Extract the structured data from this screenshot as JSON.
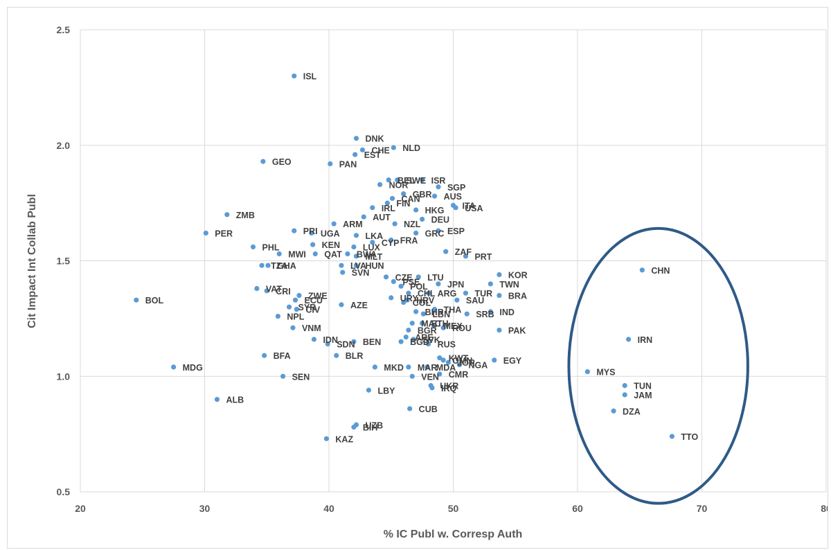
{
  "chart_data": {
    "type": "scatter",
    "title": "",
    "xlabel": "% IC Publ w. Corresp Auth",
    "ylabel": "Cit Impact Int Collab Publ",
    "xlim": [
      20,
      80
    ],
    "ylim": [
      0.5,
      2.5
    ],
    "xticks": [
      "20",
      "30",
      "40",
      "50",
      "60",
      "70",
      "80"
    ],
    "yticks": [
      "0.5",
      "1.0",
      "1.5",
      "2.0",
      "2.5"
    ],
    "grid": true,
    "marker_color": "#5b9bd5",
    "highlight_ellipse_color": "#2e5a87",
    "points": [
      {
        "label": "ISL",
        "x": 37.2,
        "y": 2.3
      },
      {
        "label": "DNK",
        "x": 42.2,
        "y": 2.03
      },
      {
        "label": "NLD",
        "x": 45.2,
        "y": 1.99
      },
      {
        "label": "CHE",
        "x": 42.7,
        "y": 1.98
      },
      {
        "label": "EST",
        "x": 42.1,
        "y": 1.96
      },
      {
        "label": "GEO",
        "x": 34.7,
        "y": 1.93
      },
      {
        "label": "PAN",
        "x": 40.1,
        "y": 1.92
      },
      {
        "label": "BEL",
        "x": 44.8,
        "y": 1.85
      },
      {
        "label": "SWE",
        "x": 45.5,
        "y": 1.85
      },
      {
        "label": "ISR",
        "x": 47.5,
        "y": 1.85
      },
      {
        "label": "NOR",
        "x": 44.1,
        "y": 1.83
      },
      {
        "label": "SGP",
        "x": 48.8,
        "y": 1.82
      },
      {
        "label": "GBR",
        "x": 46.0,
        "y": 1.79
      },
      {
        "label": "AUS",
        "x": 48.5,
        "y": 1.78
      },
      {
        "label": "CAN",
        "x": 45.1,
        "y": 1.77
      },
      {
        "label": "ITA",
        "x": 50.0,
        "y": 1.74
      },
      {
        "label": "IRL",
        "x": 43.5,
        "y": 1.73
      },
      {
        "label": "FIN",
        "x": 44.7,
        "y": 1.75
      },
      {
        "label": "HKG",
        "x": 47.0,
        "y": 1.72
      },
      {
        "label": "AUT",
        "x": 42.8,
        "y": 1.69
      },
      {
        "label": "DEU",
        "x": 47.5,
        "y": 1.68
      },
      {
        "label": "USA",
        "x": 50.2,
        "y": 1.73
      },
      {
        "label": "NZL",
        "x": 45.3,
        "y": 1.66
      },
      {
        "label": "ZMB",
        "x": 31.8,
        "y": 1.7
      },
      {
        "label": "ARM",
        "x": 40.4,
        "y": 1.66
      },
      {
        "label": "ESP",
        "x": 48.8,
        "y": 1.63
      },
      {
        "label": "PRI",
        "x": 37.2,
        "y": 1.63
      },
      {
        "label": "UGA",
        "x": 38.6,
        "y": 1.62
      },
      {
        "label": "PER",
        "x": 30.1,
        "y": 1.62
      },
      {
        "label": "LKA",
        "x": 42.2,
        "y": 1.61
      },
      {
        "label": "FRA",
        "x": 45.0,
        "y": 1.59
      },
      {
        "label": "GRC",
        "x": 47.0,
        "y": 1.62
      },
      {
        "label": "CYP",
        "x": 43.5,
        "y": 1.58
      },
      {
        "label": "LUX",
        "x": 42.0,
        "y": 1.56
      },
      {
        "label": "PHL",
        "x": 33.9,
        "y": 1.56
      },
      {
        "label": "KEN",
        "x": 38.7,
        "y": 1.57
      },
      {
        "label": "MWI",
        "x": 36.0,
        "y": 1.53
      },
      {
        "label": "QAT",
        "x": 38.9,
        "y": 1.53
      },
      {
        "label": "BWA",
        "x": 41.5,
        "y": 1.53
      },
      {
        "label": "MLT",
        "x": 42.2,
        "y": 1.52
      },
      {
        "label": "ZAF",
        "x": 49.4,
        "y": 1.54
      },
      {
        "label": "PRT",
        "x": 51.0,
        "y": 1.52
      },
      {
        "label": "TZA",
        "x": 34.6,
        "y": 1.48
      },
      {
        "label": "GHA",
        "x": 35.1,
        "y": 1.48
      },
      {
        "label": "LVA",
        "x": 41.0,
        "y": 1.48
      },
      {
        "label": "HUN",
        "x": 42.2,
        "y": 1.48
      },
      {
        "label": "SVN",
        "x": 41.1,
        "y": 1.45
      },
      {
        "label": "KOR",
        "x": 53.7,
        "y": 1.44
      },
      {
        "label": "TWN",
        "x": 53.0,
        "y": 1.4
      },
      {
        "label": "CZE",
        "x": 44.6,
        "y": 1.43
      },
      {
        "label": "LTU",
        "x": 47.2,
        "y": 1.43
      },
      {
        "label": "PSE",
        "x": 45.2,
        "y": 1.41
      },
      {
        "label": "POL",
        "x": 45.8,
        "y": 1.39
      },
      {
        "label": "JPN",
        "x": 48.8,
        "y": 1.4
      },
      {
        "label": "VAT",
        "x": 34.2,
        "y": 1.38
      },
      {
        "label": "CRI",
        "x": 35.0,
        "y": 1.37
      },
      {
        "label": "ZWE",
        "x": 37.6,
        "y": 1.35
      },
      {
        "label": "CHL",
        "x": 46.4,
        "y": 1.36
      },
      {
        "label": "ARG",
        "x": 48.0,
        "y": 1.36
      },
      {
        "label": "TUR",
        "x": 51.0,
        "y": 1.36
      },
      {
        "label": "BRA",
        "x": 53.7,
        "y": 1.35
      },
      {
        "label": "ECU",
        "x": 37.3,
        "y": 1.33
      },
      {
        "label": "URY",
        "x": 45.0,
        "y": 1.34
      },
      {
        "label": "HRV",
        "x": 46.3,
        "y": 1.33
      },
      {
        "label": "SAU",
        "x": 50.3,
        "y": 1.33
      },
      {
        "label": "BOL",
        "x": 24.5,
        "y": 1.33
      },
      {
        "label": "COL",
        "x": 46.0,
        "y": 1.32
      },
      {
        "label": "AZE",
        "x": 41.0,
        "y": 1.31
      },
      {
        "label": "THA",
        "x": 48.5,
        "y": 1.29
      },
      {
        "label": "SYR",
        "x": 36.8,
        "y": 1.3
      },
      {
        "label": "CIV",
        "x": 37.4,
        "y": 1.29
      },
      {
        "label": "BHR",
        "x": 47.0,
        "y": 1.28
      },
      {
        "label": "LBN",
        "x": 47.6,
        "y": 1.27
      },
      {
        "label": "SRB",
        "x": 51.1,
        "y": 1.27
      },
      {
        "label": "IND",
        "x": 53.0,
        "y": 1.28
      },
      {
        "label": "NPL",
        "x": 35.9,
        "y": 1.26
      },
      {
        "label": "MAC",
        "x": 46.7,
        "y": 1.23
      },
      {
        "label": "ETH",
        "x": 47.5,
        "y": 1.23
      },
      {
        "label": "MEX",
        "x": 48.5,
        "y": 1.22
      },
      {
        "label": "VNM",
        "x": 37.1,
        "y": 1.21
      },
      {
        "label": "ROU",
        "x": 49.2,
        "y": 1.21
      },
      {
        "label": "PAK",
        "x": 53.7,
        "y": 1.2
      },
      {
        "label": "BGR",
        "x": 46.4,
        "y": 1.2
      },
      {
        "label": "ARE",
        "x": 46.2,
        "y": 1.17
      },
      {
        "label": "IDN",
        "x": 38.8,
        "y": 1.16
      },
      {
        "label": "SVK",
        "x": 46.8,
        "y": 1.16
      },
      {
        "label": "SDN",
        "x": 39.9,
        "y": 1.14
      },
      {
        "label": "BEN",
        "x": 42.0,
        "y": 1.15
      },
      {
        "label": "BGD",
        "x": 45.8,
        "y": 1.15
      },
      {
        "label": "RUS",
        "x": 48.0,
        "y": 1.14
      },
      {
        "label": "BFA",
        "x": 34.8,
        "y": 1.09
      },
      {
        "label": "BLR",
        "x": 40.6,
        "y": 1.09
      },
      {
        "label": "KWT",
        "x": 48.9,
        "y": 1.08
      },
      {
        "label": "OMN",
        "x": 49.2,
        "y": 1.07
      },
      {
        "label": "JOR",
        "x": 49.6,
        "y": 1.06
      },
      {
        "label": "EGY",
        "x": 53.3,
        "y": 1.07
      },
      {
        "label": "MKD",
        "x": 43.7,
        "y": 1.04
      },
      {
        "label": "MDA",
        "x": 47.9,
        "y": 1.04
      },
      {
        "label": "NGA",
        "x": 50.5,
        "y": 1.05
      },
      {
        "label": "MDG",
        "x": 27.5,
        "y": 1.04
      },
      {
        "label": "MAR",
        "x": 46.4,
        "y": 1.04
      },
      {
        "label": "CMR",
        "x": 48.9,
        "y": 1.01
      },
      {
        "label": "SEN",
        "x": 36.3,
        "y": 1.0
      },
      {
        "label": "VEN",
        "x": 46.7,
        "y": 1.0
      },
      {
        "label": "UKR",
        "x": 48.2,
        "y": 0.96
      },
      {
        "label": "IRQ",
        "x": 48.3,
        "y": 0.95
      },
      {
        "label": "LBY",
        "x": 43.2,
        "y": 0.94
      },
      {
        "label": "ALB",
        "x": 31.0,
        "y": 0.9
      },
      {
        "label": "CUB",
        "x": 46.5,
        "y": 0.86
      },
      {
        "label": "UZB",
        "x": 42.2,
        "y": 0.79
      },
      {
        "label": "BIH",
        "x": 42.0,
        "y": 0.78
      },
      {
        "label": "KAZ",
        "x": 39.8,
        "y": 0.73
      },
      {
        "label": "CHN",
        "x": 65.2,
        "y": 1.46
      },
      {
        "label": "IRN",
        "x": 64.1,
        "y": 1.16
      },
      {
        "label": "MYS",
        "x": 60.8,
        "y": 1.02
      },
      {
        "label": "TUN",
        "x": 63.8,
        "y": 0.96
      },
      {
        "label": "JAM",
        "x": 63.8,
        "y": 0.92
      },
      {
        "label": "DZA",
        "x": 62.9,
        "y": 0.85
      },
      {
        "label": "TTO",
        "x": 67.6,
        "y": 0.74
      }
    ],
    "highlight": {
      "shape": "ellipse",
      "center": [
        66.5,
        1.045
      ],
      "rx": 7.2,
      "ry": 0.595
    }
  }
}
